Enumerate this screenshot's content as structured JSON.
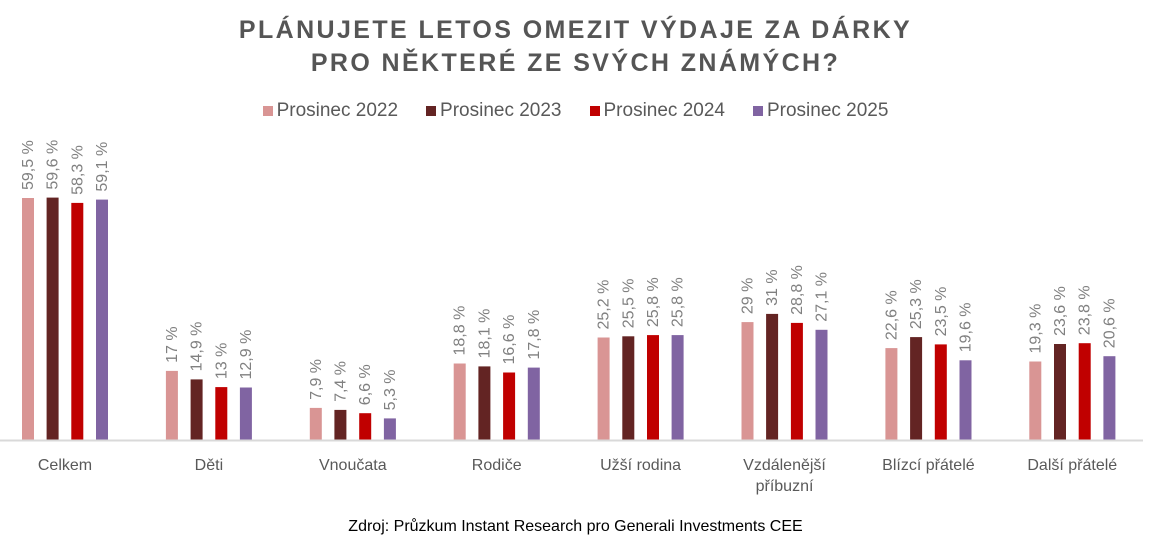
{
  "chart_data": {
    "type": "bar",
    "title_lines": [
      "PLÁNUJETE LETOS OMEZIT VÝDAJE ZA DÁRKY",
      "PRO NĚKTERÉ ZE SVÝCH ZNÁMÝCH?"
    ],
    "categories": [
      [
        "Celkem"
      ],
      [
        "Děti"
      ],
      [
        "Vnoučata"
      ],
      [
        "Rodiče"
      ],
      [
        "Užší rodina"
      ],
      [
        "Vzdálenější",
        "příbuzní"
      ],
      [
        "Blízcí přátelé"
      ],
      [
        "Další přátelé"
      ]
    ],
    "series": [
      {
        "name": "Prosinec 2022",
        "color": "#d99594",
        "values": [
          59.5,
          17,
          7.9,
          18.8,
          25.2,
          29,
          22.6,
          19.3
        ]
      },
      {
        "name": "Prosinec 2023",
        "color": "#632423",
        "values": [
          59.6,
          14.9,
          7.4,
          18.1,
          25.5,
          31,
          25.3,
          23.6
        ]
      },
      {
        "name": "Prosinec 2024",
        "color": "#c00000",
        "values": [
          58.3,
          13,
          6.6,
          16.6,
          25.8,
          28.8,
          23.5,
          23.8
        ]
      },
      {
        "name": "Prosinec 2025",
        "color": "#8064a2",
        "values": [
          59.1,
          12.9,
          5.3,
          17.8,
          25.8,
          27.1,
          19.6,
          20.6
        ]
      }
    ],
    "value_suffix": " %",
    "decimal_separator": ",",
    "xlabel": "",
    "ylabel": "",
    "ylim": [
      0,
      60
    ],
    "grid": false,
    "legend_position": "top",
    "source": "Zdroj: Průzkum Instant Research pro Generali Investments CEE"
  }
}
